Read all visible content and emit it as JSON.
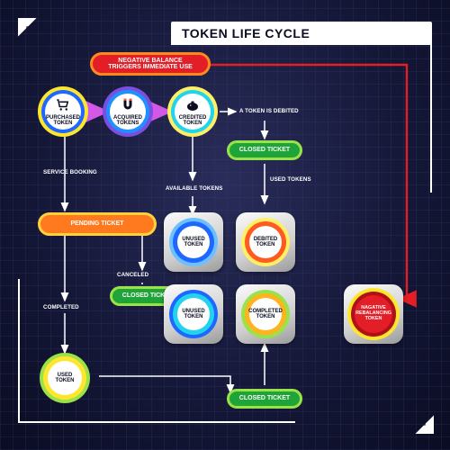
{
  "title": "TOKEN LIFE CYCLE",
  "colors": {
    "bg_center": "#2a2d5a",
    "bg_edge": "#0a0c22",
    "red": "#e41e26",
    "red_hl": "#ff5a3c",
    "orange": "#ff8a1f",
    "orange_hl": "#ffd23d",
    "green": "#1fa43a",
    "green_hl": "#9be24a",
    "yellow": "#ffe62e",
    "blue": "#1e90ff",
    "cyan": "#22d3ee",
    "purple": "#7a4fe0",
    "white": "#ffffff",
    "text_dark": "#0a0c22"
  },
  "trigger_pill": {
    "line1": "NEGATIVE BALANCE",
    "line2": "TRIGGERS IMMEDIATE USE"
  },
  "circles": {
    "purchased": {
      "label": "PURCHASED\nTOKEN",
      "icon": "cart"
    },
    "acquired": {
      "label": "ACQUIRED\nTOKENS",
      "icon": "magnet"
    },
    "credited": {
      "label": "CREDITED\nTOKEN",
      "icon": "piggy"
    },
    "unused1": {
      "label": "UNUSED\nTOKEN"
    },
    "debited": {
      "label": "DEBITED\nTOKEN"
    },
    "unused2": {
      "label": "UNUSED\nTOKEN"
    },
    "completed": {
      "label": "COMPLETED\nTOKEN"
    },
    "rebalancing": {
      "label": "NAGATIVE\nREBALANCING\nTOKEN"
    },
    "used": {
      "label": "USED\nTOKEN"
    }
  },
  "pills": {
    "pending": {
      "label": "PENDING TICKET"
    },
    "closed_a": {
      "label": "CLOSED TICKET"
    },
    "closed_b": {
      "label": "CLOSED TICKET"
    },
    "closed_c": {
      "label": "CLOSED TICKET"
    }
  },
  "labels": {
    "debited_txt": "A TOKEN IS DEBITED",
    "service_booking": "SERVICE BOOKING",
    "available_tokens": "AVAILABLE TOKENS",
    "used_tokens": "USED TOKENS",
    "completed": "COMPLETED",
    "canceled": "CANCELED"
  }
}
